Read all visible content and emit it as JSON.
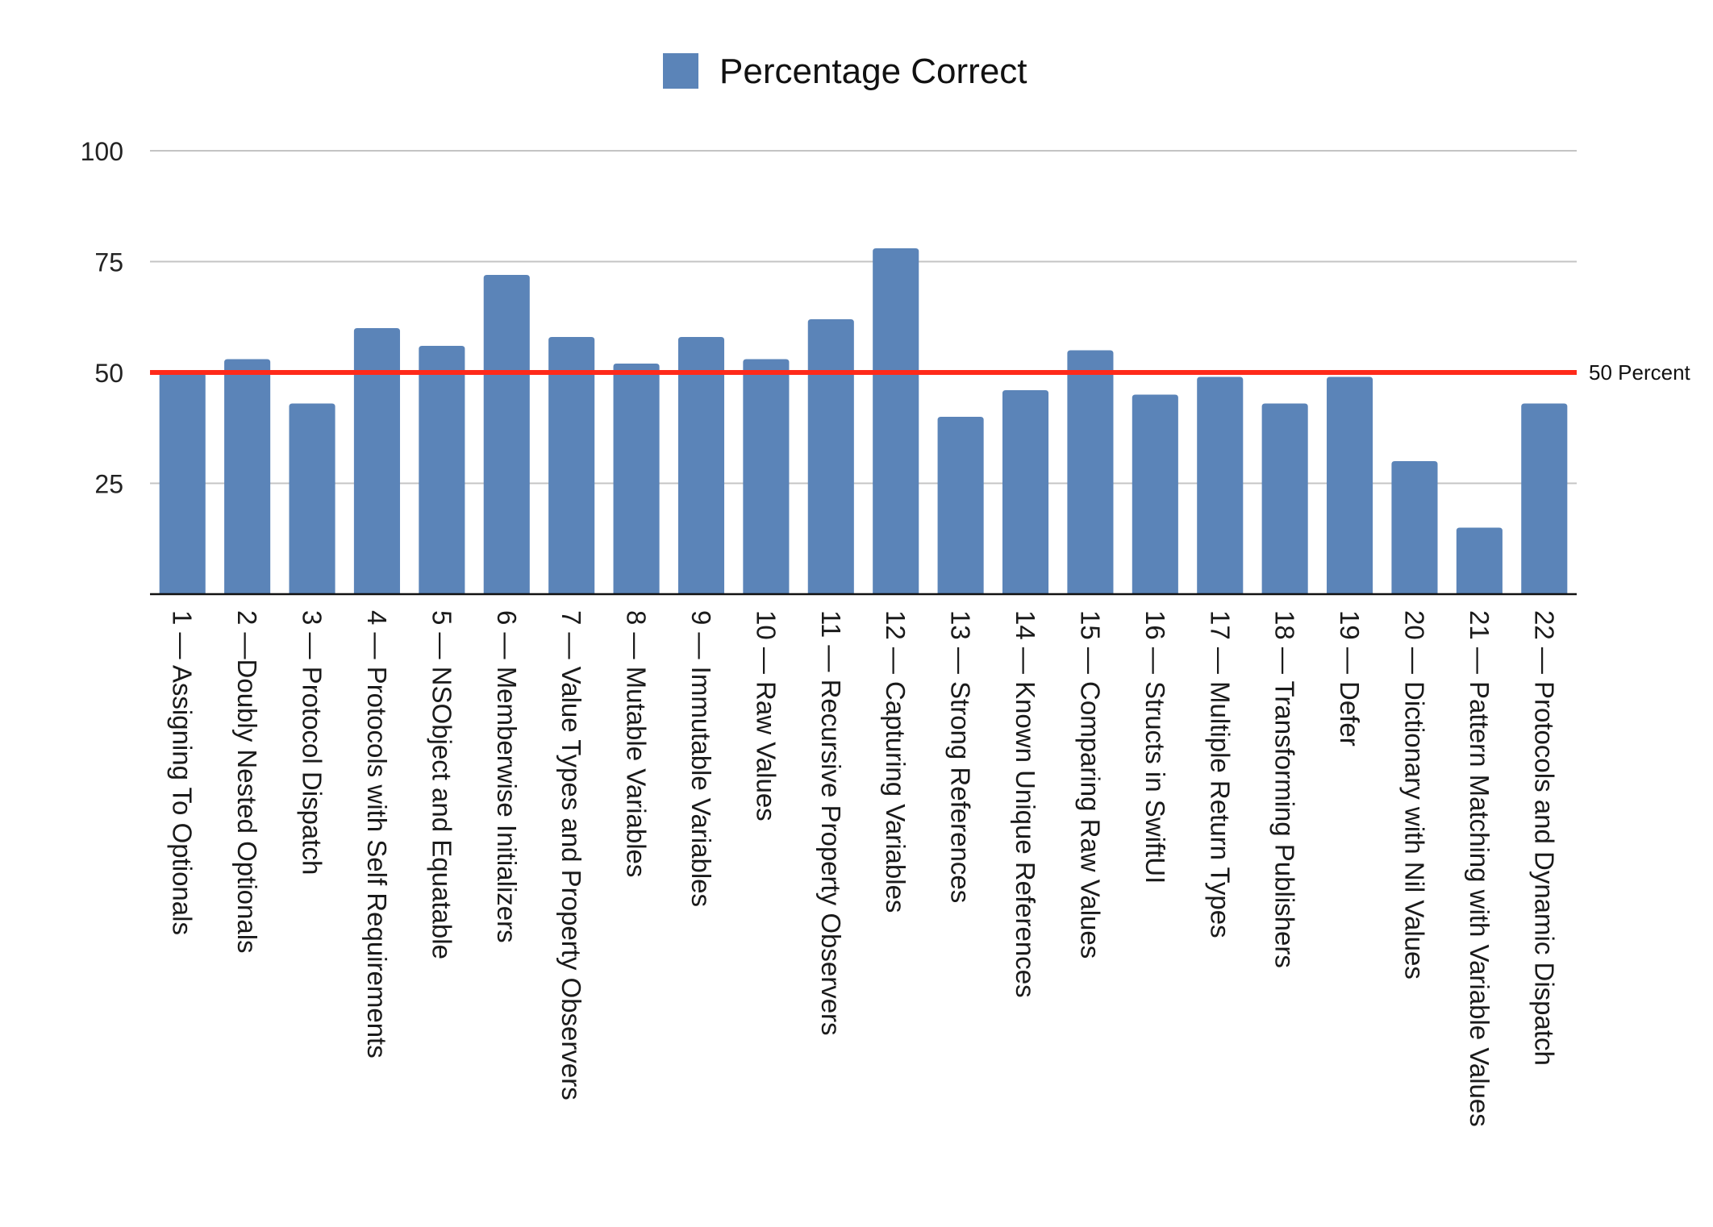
{
  "chart_data": {
    "type": "bar",
    "title": "",
    "xlabel": "",
    "ylabel": "",
    "ylim": [
      0,
      100
    ],
    "yticks": [
      25,
      50,
      75,
      100
    ],
    "grid": true,
    "legend_position": "top-center",
    "categories": [
      "1 — Assigning To Optionals",
      "2 —Doubly Nested Optionals",
      "3 — Protocol Dispatch",
      "4 — Protocols with Self Requirements",
      "5 — NSObject and Equatable",
      "6 — Memberwise Initializers",
      "7 — Value Types and Property Observers",
      "8 — Mutable Variables",
      "9 — Immutable Variables",
      "10 — Raw Values",
      "11 — Recursive Property Observers",
      "12 — Capturing Variables",
      "13 — Strong References",
      "14 — Known Unique References",
      "15 — Comparing Raw Values",
      "16 — Structs in SwiftUI",
      "17 — Multiple Return Types",
      "18 — Transforming Publishers",
      "19 — Defer",
      "20 — Dictionary with Nil Values",
      "21 — Pattern Matching with Variable Values",
      "22 — Protocols and Dynamic Dispatch"
    ],
    "series": [
      {
        "name": "Percentage Correct",
        "color": "#5b84b8",
        "values": [
          50,
          53,
          43,
          60,
          56,
          72,
          58,
          52,
          58,
          53,
          62,
          78,
          40,
          46,
          55,
          45,
          49,
          43,
          49,
          30,
          15,
          43
        ]
      }
    ],
    "reference_line": {
      "value": 50,
      "label": "50 Percent",
      "color": "#ff2a1a"
    }
  }
}
